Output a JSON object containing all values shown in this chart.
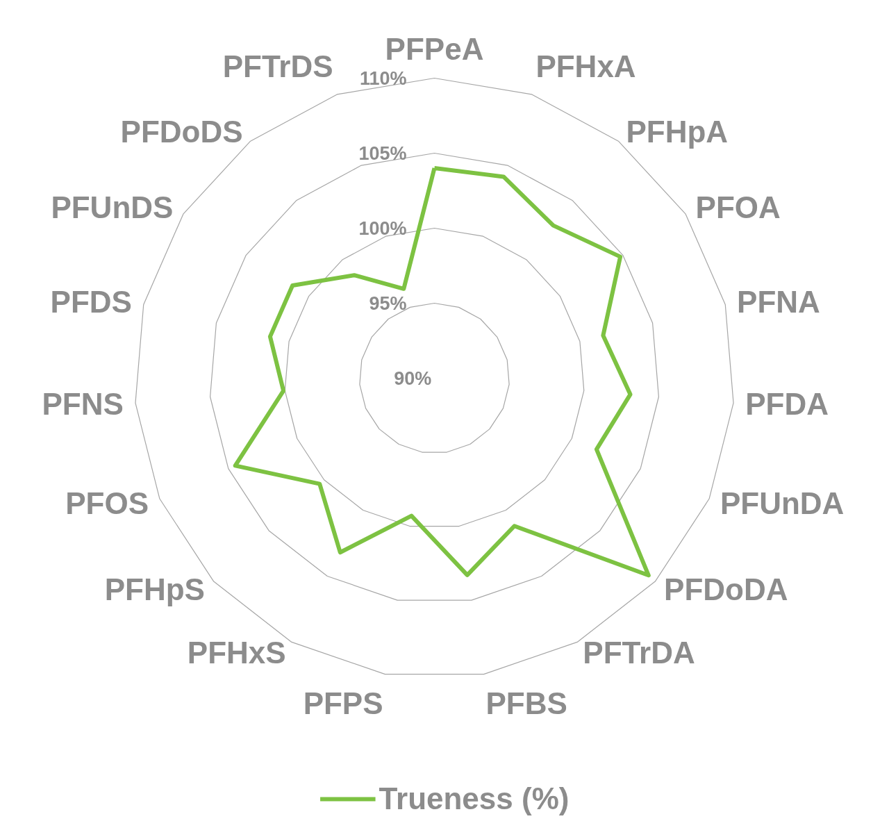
{
  "chart_data": {
    "type": "radar",
    "categories": [
      "PFPeA",
      "PFHxA",
      "PFHpA",
      "PFOA",
      "PFNA",
      "PFDA",
      "PFUnDA",
      "PFDoDA",
      "PFTrDA",
      "PFBS",
      "PFPS",
      "PFHxS",
      "PFHpS",
      "PFOS",
      "PFNS",
      "PFDS",
      "PFUnDS",
      "PFDoDS",
      "PFTrDS"
    ],
    "series": [
      {
        "name": "Trueness (%)",
        "color": "#7dc242",
        "values": [
          104.0,
          104.2,
          102.9,
          104.8,
          101.6,
          103.1,
          101.8,
          109.4,
          101.2,
          103.3,
          99.3,
          103.2,
          100.4,
          104.5,
          100.1,
          101.3,
          101.3,
          98.7,
          96.3
        ]
      }
    ],
    "ylim": [
      90,
      110
    ],
    "yticks": [
      {
        "value": 90,
        "label": "90%"
      },
      {
        "value": 95,
        "label": "95%"
      },
      {
        "value": 100,
        "label": "100%"
      },
      {
        "value": 105,
        "label": "105%"
      },
      {
        "value": 110,
        "label": "110%"
      }
    ],
    "legend": "bottom",
    "grid": true
  }
}
